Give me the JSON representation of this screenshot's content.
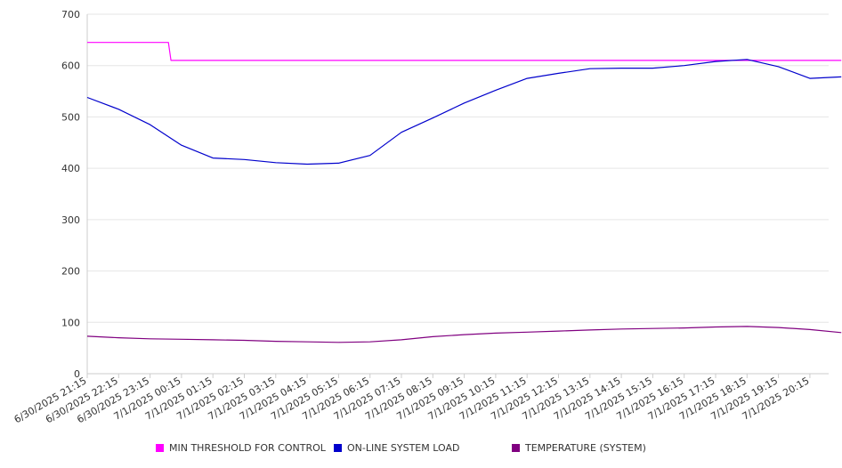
{
  "chart_data": {
    "type": "line",
    "ylim": [
      0,
      700
    ],
    "yticks": [
      0,
      100,
      200,
      300,
      400,
      500,
      600,
      700
    ],
    "grid": true,
    "legend_position": "bottom",
    "x_tick_labels": [
      "6/30/2025 21:15",
      "6/30/2025 22:15",
      "6/30/2025 23:15",
      "7/1/2025 00:15",
      "7/1/2025 01:15",
      "7/1/2025 02:15",
      "7/1/2025 03:15",
      "7/1/2025 04:15",
      "7/1/2025 05:15",
      "7/1/2025 06:15",
      "7/1/2025 07:15",
      "7/1/2025 08:15",
      "7/1/2025 09:15",
      "7/1/2025 10:15",
      "7/1/2025 11:15",
      "7/1/2025 12:15",
      "7/1/2025 13:15",
      "7/1/2025 14:15",
      "7/1/2025 15:15",
      "7/1/2025 16:15",
      "7/1/2025 17:15",
      "7/1/2025 18:15",
      "7/1/2025 19:15",
      "7/1/2025 20:15"
    ],
    "series": [
      {
        "name": "MIN THRESHOLD FOR CONTROL",
        "color": "#ff00ff",
        "points": [
          [
            "6/30/2025 21:15",
            645
          ],
          [
            "6/30/2025 22:15",
            645
          ],
          [
            "6/30/2025 23:15",
            645
          ],
          [
            "6/30/2025 23:50",
            645
          ],
          [
            "6/30/2025 23:55",
            610
          ],
          [
            "7/1/2025 00:15",
            610
          ],
          [
            "7/1/2025 06:15",
            610
          ],
          [
            "7/1/2025 12:15",
            610
          ],
          [
            "7/1/2025 18:15",
            610
          ],
          [
            "7/1/2025 21:15",
            610
          ]
        ]
      },
      {
        "name": "ON-LINE SYSTEM LOAD",
        "color": "#0000cc",
        "points": [
          [
            "6/30/2025 21:15",
            538
          ],
          [
            "6/30/2025 22:15",
            515
          ],
          [
            "6/30/2025 23:15",
            485
          ],
          [
            "7/1/2025 00:15",
            445
          ],
          [
            "7/1/2025 01:15",
            420
          ],
          [
            "7/1/2025 02:15",
            417
          ],
          [
            "7/1/2025 03:15",
            411
          ],
          [
            "7/1/2025 04:15",
            408
          ],
          [
            "7/1/2025 05:15",
            410
          ],
          [
            "7/1/2025 06:15",
            425
          ],
          [
            "7/1/2025 07:15",
            470
          ],
          [
            "7/1/2025 08:15",
            498
          ],
          [
            "7/1/2025 09:15",
            527
          ],
          [
            "7/1/2025 10:15",
            552
          ],
          [
            "7/1/2025 11:15",
            575
          ],
          [
            "7/1/2025 12:15",
            585
          ],
          [
            "7/1/2025 13:15",
            594
          ],
          [
            "7/1/2025 14:15",
            595
          ],
          [
            "7/1/2025 15:15",
            595
          ],
          [
            "7/1/2025 16:15",
            600
          ],
          [
            "7/1/2025 17:15",
            608
          ],
          [
            "7/1/2025 18:15",
            612
          ],
          [
            "7/1/2025 19:15",
            598
          ],
          [
            "7/1/2025 20:15",
            575
          ],
          [
            "7/1/2025 21:15",
            578
          ]
        ]
      },
      {
        "name": "TEMPERATURE (SYSTEM)",
        "color": "#800080",
        "points": [
          [
            "6/30/2025 21:15",
            73
          ],
          [
            "6/30/2025 22:15",
            70
          ],
          [
            "6/30/2025 23:15",
            68
          ],
          [
            "7/1/2025 00:15",
            67
          ],
          [
            "7/1/2025 01:15",
            66
          ],
          [
            "7/1/2025 02:15",
            65
          ],
          [
            "7/1/2025 03:15",
            63
          ],
          [
            "7/1/2025 04:15",
            62
          ],
          [
            "7/1/2025 05:15",
            61
          ],
          [
            "7/1/2025 06:15",
            62
          ],
          [
            "7/1/2025 07:15",
            66
          ],
          [
            "7/1/2025 08:15",
            72
          ],
          [
            "7/1/2025 09:15",
            76
          ],
          [
            "7/1/2025 10:15",
            79
          ],
          [
            "7/1/2025 11:15",
            81
          ],
          [
            "7/1/2025 12:15",
            83
          ],
          [
            "7/1/2025 13:15",
            85
          ],
          [
            "7/1/2025 14:15",
            87
          ],
          [
            "7/1/2025 15:15",
            88
          ],
          [
            "7/1/2025 16:15",
            89
          ],
          [
            "7/1/2025 17:15",
            91
          ],
          [
            "7/1/2025 18:15",
            92
          ],
          [
            "7/1/2025 19:15",
            90
          ],
          [
            "7/1/2025 20:15",
            86
          ],
          [
            "7/1/2025 21:15",
            80
          ]
        ]
      }
    ]
  }
}
